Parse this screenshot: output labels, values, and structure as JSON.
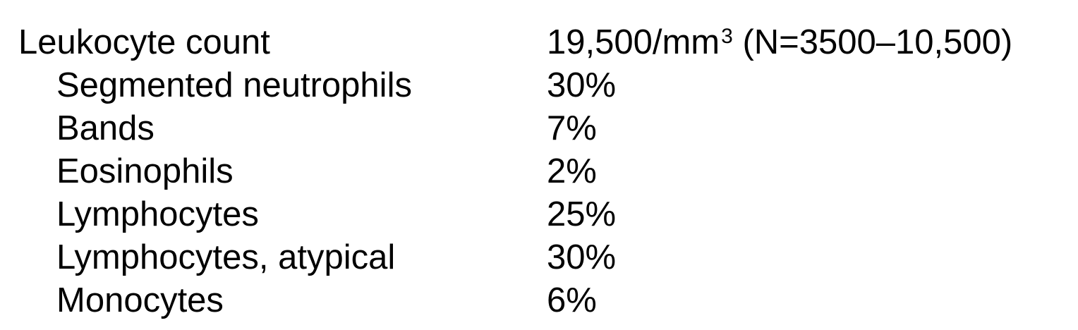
{
  "leukocyte": {
    "label": "Leukocyte count",
    "value": "19,500/mm",
    "value_sup": "3",
    "normal_range": "(N=3500–10,500)"
  },
  "differential": [
    {
      "label": "Segmented neutrophils",
      "value": "30%"
    },
    {
      "label": "Bands",
      "value": "7%"
    },
    {
      "label": "Eosinophils",
      "value": "2%"
    },
    {
      "label": "Lymphocytes",
      "value": "25%"
    },
    {
      "label": "Lymphocytes, atypical",
      "value": "30%"
    },
    {
      "label": "Monocytes",
      "value": "6%"
    }
  ]
}
